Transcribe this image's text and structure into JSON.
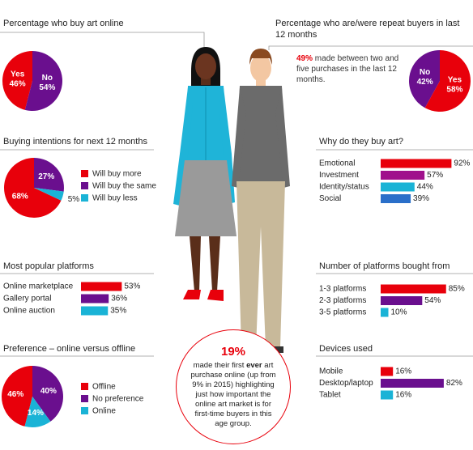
{
  "chart_data": [
    {
      "type": "pie",
      "title": "Percentage who buy art online",
      "categories": [
        "Yes",
        "No"
      ],
      "values": [
        46,
        54
      ],
      "value_labels": [
        "46%",
        "54%"
      ],
      "colors": [
        "#e8000b",
        "#6a0f8e"
      ],
      "legend": false
    },
    {
      "type": "pie",
      "title": "Percentage who are/were repeat buyers in last 12 months",
      "categories": [
        "No",
        "Yes"
      ],
      "values": [
        42,
        58
      ],
      "value_labels": [
        "42%",
        "58%"
      ],
      "colors": [
        "#6a0f8e",
        "#e8000b"
      ],
      "legend": false,
      "annotation_highlight": "49%",
      "annotation": "made between two and five purchases in the last 12 months."
    },
    {
      "type": "pie",
      "title": "Buying intentions for next 12 months",
      "categories": [
        "Will buy more",
        "Will buy the same",
        "Will buy less"
      ],
      "values": [
        68,
        27,
        5
      ],
      "value_labels": [
        "68%",
        "27%",
        "5%"
      ],
      "colors": [
        "#e8000b",
        "#6a0f8e",
        "#1ab3d6"
      ],
      "legend": true
    },
    {
      "type": "bar",
      "title": "Most popular platforms",
      "categories": [
        "Online marketplace",
        "Gallery portal",
        "Online auction"
      ],
      "values": [
        53,
        36,
        35
      ],
      "value_labels": [
        "53%",
        "36%",
        "35%"
      ],
      "colors": [
        "#e8000b",
        "#6a0f8e",
        "#1ab3d6"
      ]
    },
    {
      "type": "pie",
      "title": "Preference – online versus offline",
      "categories": [
        "Offline",
        "No preference",
        "Online"
      ],
      "values": [
        46,
        40,
        14
      ],
      "value_labels": [
        "46%",
        "40%",
        "14%"
      ],
      "colors": [
        "#e8000b",
        "#6a0f8e",
        "#1ab3d6"
      ],
      "legend": true
    },
    {
      "type": "bar",
      "title": "Why do they buy art?",
      "categories": [
        "Emotional",
        "Investment",
        "Identity/status",
        "Social"
      ],
      "values": [
        92,
        57,
        44,
        39
      ],
      "value_labels": [
        "92%",
        "57%",
        "44%",
        "39%"
      ],
      "colors": [
        "#e8000b",
        "#a0118c",
        "#1ab3d6",
        "#2a6fc9"
      ]
    },
    {
      "type": "bar",
      "title": "Number of platforms bought from",
      "categories": [
        "1-3 platforms",
        "2-3 platforms",
        "3-5 platforms"
      ],
      "values": [
        85,
        54,
        10
      ],
      "value_labels": [
        "85%",
        "54%",
        "10%"
      ],
      "colors": [
        "#e8000b",
        "#6a0f8e",
        "#1ab3d6"
      ]
    },
    {
      "type": "bar",
      "title": "Devices used",
      "categories": [
        "Mobile",
        "Desktop/laptop",
        "Tablet"
      ],
      "values": [
        16,
        82,
        16
      ],
      "value_labels": [
        "16%",
        "82%",
        "16%"
      ],
      "colors": [
        "#e8000b",
        "#6a0f8e",
        "#1ab3d6"
      ]
    }
  ],
  "callout": {
    "headline": "19%",
    "text": [
      "made their first ",
      "ever",
      " art purchase online (up from 9% in 2015) highlighting just how important the online art market is for first-time buyers in this age group."
    ]
  }
}
